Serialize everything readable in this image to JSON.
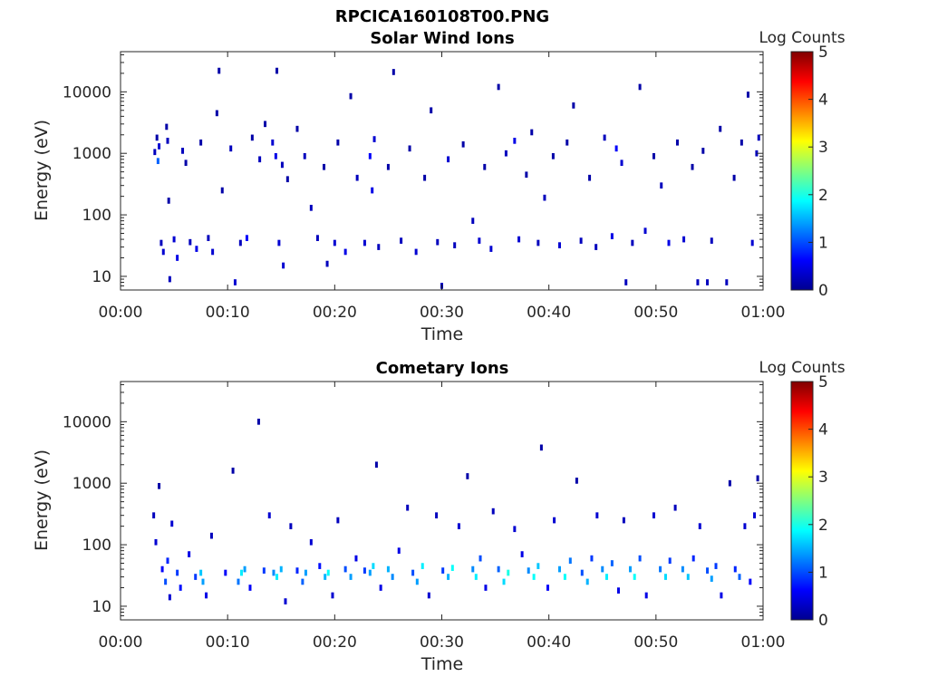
{
  "figure_title": "RPCICA160108T00.PNG",
  "colors": {
    "colormap": "jet",
    "axis": "#262626"
  },
  "chart_data": [
    {
      "type": "heatmap",
      "title": "Solar Wind Ions",
      "xlabel": "Time",
      "ylabel": "Energy (eV)",
      "x_ticks": [
        "00:00",
        "00:10",
        "00:20",
        "00:30",
        "00:40",
        "00:50",
        "01:00"
      ],
      "xlim_minutes": [
        0,
        60
      ],
      "y_scale": "log",
      "y_ticks": [
        {
          "value": 10,
          "label": "10"
        },
        {
          "value": 100,
          "label": "100"
        },
        {
          "value": 1000,
          "label": "1000"
        },
        {
          "value": 10000,
          "label": "10000"
        }
      ],
      "ylim": [
        6,
        45000
      ],
      "colorbar": {
        "label": "Log Counts",
        "range": [
          0,
          5
        ],
        "ticks": [
          "0",
          "1",
          "2",
          "3",
          "4",
          "5"
        ]
      },
      "data_points": [
        [
          3.2,
          1050,
          0.3
        ],
        [
          3.4,
          1800,
          0.2
        ],
        [
          3.5,
          750,
          1.1
        ],
        [
          3.6,
          1300,
          0.4
        ],
        [
          3.8,
          35,
          0.3
        ],
        [
          4.0,
          25,
          0.4
        ],
        [
          4.3,
          2700,
          0.2
        ],
        [
          4.4,
          1600,
          0.3
        ],
        [
          4.5,
          170,
          0.2
        ],
        [
          4.6,
          9,
          0.3
        ],
        [
          5.0,
          40,
          0.4
        ],
        [
          5.3,
          20,
          0.5
        ],
        [
          5.8,
          1100,
          0.3
        ],
        [
          6.1,
          700,
          0.2
        ],
        [
          6.5,
          36,
          0.3
        ],
        [
          7.1,
          28,
          0.5
        ],
        [
          7.5,
          1500,
          0.2
        ],
        [
          8.2,
          42,
          0.3
        ],
        [
          8.6,
          25,
          0.4
        ],
        [
          9.0,
          4500,
          0.2
        ],
        [
          9.2,
          22000,
          0.2
        ],
        [
          9.5,
          250,
          0.2
        ],
        [
          10.3,
          1200,
          0.3
        ],
        [
          10.7,
          8,
          0.4
        ],
        [
          11.2,
          35,
          0.3
        ],
        [
          11.8,
          42,
          0.6
        ],
        [
          12.3,
          1800,
          0.2
        ],
        [
          13.0,
          800,
          0.3
        ],
        [
          13.5,
          3000,
          0.2
        ],
        [
          14.2,
          1500,
          0.4
        ],
        [
          14.5,
          900,
          0.5
        ],
        [
          14.6,
          22000,
          0.2
        ],
        [
          14.8,
          35,
          0.4
        ],
        [
          15.1,
          650,
          0.3
        ],
        [
          15.2,
          15,
          0.4
        ],
        [
          15.6,
          380,
          0.2
        ],
        [
          16.5,
          2500,
          0.2
        ],
        [
          17.2,
          900,
          0.3
        ],
        [
          17.8,
          130,
          0.3
        ],
        [
          18.4,
          42,
          0.3
        ],
        [
          19.0,
          600,
          0.2
        ],
        [
          19.3,
          16,
          0.3
        ],
        [
          20.0,
          35,
          0.4
        ],
        [
          20.3,
          1500,
          0.2
        ],
        [
          21.0,
          25,
          0.5
        ],
        [
          21.5,
          8500,
          0.2
        ],
        [
          22.1,
          400,
          0.3
        ],
        [
          22.8,
          35,
          0.4
        ],
        [
          23.3,
          900,
          0.6
        ],
        [
          23.5,
          250,
          0.5
        ],
        [
          23.7,
          1700,
          0.4
        ],
        [
          24.1,
          30,
          0.3
        ],
        [
          25.0,
          600,
          0.2
        ],
        [
          25.5,
          21000,
          0.2
        ],
        [
          26.2,
          38,
          0.3
        ],
        [
          27.0,
          1200,
          0.2
        ],
        [
          27.6,
          25,
          0.4
        ],
        [
          28.4,
          400,
          0.2
        ],
        [
          29.0,
          5000,
          0.2
        ],
        [
          29.6,
          36,
          0.3
        ],
        [
          30.0,
          7,
          0.3
        ],
        [
          30.6,
          800,
          0.4
        ],
        [
          31.2,
          32,
          0.3
        ],
        [
          32.0,
          1400,
          0.2
        ],
        [
          32.9,
          80,
          0.3
        ],
        [
          33.5,
          38,
          0.4
        ],
        [
          34.0,
          600,
          0.2
        ],
        [
          34.6,
          28,
          0.4
        ],
        [
          35.3,
          12000,
          0.2
        ],
        [
          36.0,
          1000,
          0.3
        ],
        [
          36.8,
          1600,
          0.5
        ],
        [
          37.2,
          40,
          0.4
        ],
        [
          37.9,
          450,
          0.2
        ],
        [
          38.4,
          2200,
          0.2
        ],
        [
          39.0,
          35,
          0.3
        ],
        [
          39.6,
          190,
          0.3
        ],
        [
          40.4,
          900,
          0.2
        ],
        [
          41.0,
          32,
          0.4
        ],
        [
          41.7,
          1500,
          0.2
        ],
        [
          42.3,
          6000,
          0.2
        ],
        [
          43.0,
          38,
          0.3
        ],
        [
          43.8,
          400,
          0.2
        ],
        [
          44.4,
          30,
          0.3
        ],
        [
          45.2,
          1800,
          0.3
        ],
        [
          45.9,
          45,
          0.5
        ],
        [
          46.3,
          1200,
          0.6
        ],
        [
          46.8,
          700,
          0.4
        ],
        [
          47.2,
          8,
          0.3
        ],
        [
          47.8,
          35,
          0.3
        ],
        [
          48.5,
          12000,
          0.2
        ],
        [
          49.0,
          55,
          0.4
        ],
        [
          49.8,
          900,
          0.2
        ],
        [
          50.5,
          300,
          0.3
        ],
        [
          51.2,
          35,
          0.5
        ],
        [
          52.0,
          1500,
          0.2
        ],
        [
          52.6,
          40,
          0.4
        ],
        [
          53.4,
          600,
          0.2
        ],
        [
          53.9,
          8,
          0.3
        ],
        [
          54.4,
          1100,
          0.2
        ],
        [
          54.8,
          8,
          0.3
        ],
        [
          55.2,
          38,
          0.3
        ],
        [
          56.0,
          2500,
          0.2
        ],
        [
          56.6,
          8,
          0.3
        ],
        [
          57.3,
          400,
          0.2
        ],
        [
          58.0,
          1500,
          0.2
        ],
        [
          58.6,
          9000,
          0.2
        ],
        [
          59.0,
          35,
          0.4
        ],
        [
          59.4,
          1000,
          0.3
        ],
        [
          59.6,
          1800,
          0.3
        ]
      ]
    },
    {
      "type": "heatmap",
      "title": "Cometary Ions",
      "xlabel": "Time",
      "ylabel": "Energy (eV)",
      "x_ticks": [
        "00:00",
        "00:10",
        "00:20",
        "00:30",
        "00:40",
        "00:50",
        "01:00"
      ],
      "xlim_minutes": [
        0,
        60
      ],
      "y_scale": "log",
      "y_ticks": [
        {
          "value": 10,
          "label": "10"
        },
        {
          "value": 100,
          "label": "100"
        },
        {
          "value": 1000,
          "label": "1000"
        },
        {
          "value": 10000,
          "label": "10000"
        }
      ],
      "ylim": [
        6,
        45000
      ],
      "colorbar": {
        "label": "Log Counts",
        "range": [
          0,
          5
        ],
        "ticks": [
          "0",
          "1",
          "2",
          "3",
          "4",
          "5"
        ]
      },
      "data_points": [
        [
          3.1,
          300,
          0.3
        ],
        [
          3.3,
          110,
          0.4
        ],
        [
          3.6,
          900,
          0.2
        ],
        [
          3.9,
          40,
          0.6
        ],
        [
          4.2,
          25,
          1.0
        ],
        [
          4.4,
          55,
          0.8
        ],
        [
          4.6,
          14,
          0.4
        ],
        [
          4.8,
          220,
          0.4
        ],
        [
          5.3,
          35,
          0.9
        ],
        [
          5.6,
          20,
          0.7
        ],
        [
          6.4,
          70,
          0.5
        ],
        [
          7.0,
          30,
          0.9
        ],
        [
          7.5,
          35,
          1.6
        ],
        [
          7.7,
          25,
          1.4
        ],
        [
          8.0,
          15,
          0.5
        ],
        [
          8.5,
          140,
          0.3
        ],
        [
          9.8,
          35,
          0.6
        ],
        [
          10.5,
          1600,
          0.2
        ],
        [
          11.0,
          25,
          1.2
        ],
        [
          11.3,
          35,
          1.8
        ],
        [
          11.6,
          40,
          1.4
        ],
        [
          12.1,
          20,
          0.6
        ],
        [
          12.9,
          10000,
          0.2
        ],
        [
          13.4,
          38,
          0.9
        ],
        [
          13.9,
          300,
          0.4
        ],
        [
          14.3,
          35,
          1.3
        ],
        [
          14.6,
          30,
          1.8
        ],
        [
          15.0,
          40,
          1.5
        ],
        [
          15.4,
          12,
          0.4
        ],
        [
          15.9,
          200,
          0.3
        ],
        [
          16.5,
          38,
          0.8
        ],
        [
          17.0,
          25,
          1.1
        ],
        [
          17.3,
          35,
          1.4
        ],
        [
          17.8,
          110,
          0.4
        ],
        [
          18.6,
          45,
          0.7
        ],
        [
          19.1,
          30,
          1.5
        ],
        [
          19.4,
          35,
          1.9
        ],
        [
          19.8,
          15,
          0.4
        ],
        [
          20.3,
          250,
          0.3
        ],
        [
          21.0,
          40,
          1.0
        ],
        [
          21.5,
          30,
          1.4
        ],
        [
          22.0,
          60,
          0.5
        ],
        [
          22.8,
          38,
          0.9
        ],
        [
          23.3,
          35,
          1.4
        ],
        [
          23.6,
          45,
          1.7
        ],
        [
          23.9,
          2000,
          0.2
        ],
        [
          24.3,
          20,
          0.5
        ],
        [
          25.0,
          40,
          1.5
        ],
        [
          25.4,
          30,
          1.3
        ],
        [
          26.0,
          80,
          0.5
        ],
        [
          26.8,
          400,
          0.3
        ],
        [
          27.3,
          35,
          1.0
        ],
        [
          27.7,
          25,
          1.4
        ],
        [
          28.2,
          45,
          1.8
        ],
        [
          28.8,
          15,
          0.4
        ],
        [
          29.5,
          300,
          0.3
        ],
        [
          30.1,
          38,
          0.9
        ],
        [
          30.6,
          30,
          1.5
        ],
        [
          31.0,
          42,
          1.9
        ],
        [
          31.6,
          200,
          0.4
        ],
        [
          32.4,
          1300,
          0.2
        ],
        [
          32.9,
          40,
          1.3
        ],
        [
          33.2,
          30,
          1.8
        ],
        [
          33.6,
          60,
          1.0
        ],
        [
          34.1,
          20,
          0.5
        ],
        [
          34.8,
          350,
          0.3
        ],
        [
          35.3,
          40,
          1.1
        ],
        [
          35.8,
          25,
          1.7
        ],
        [
          36.2,
          35,
          2.0
        ],
        [
          36.8,
          180,
          0.4
        ],
        [
          37.5,
          70,
          0.5
        ],
        [
          38.1,
          38,
          1.3
        ],
        [
          38.6,
          30,
          1.9
        ],
        [
          39.0,
          45,
          1.6
        ],
        [
          39.3,
          3800,
          0.2
        ],
        [
          39.9,
          20,
          0.6
        ],
        [
          40.5,
          250,
          0.4
        ],
        [
          41.0,
          40,
          1.4
        ],
        [
          41.5,
          30,
          1.9
        ],
        [
          42.0,
          55,
          1.2
        ],
        [
          42.6,
          1100,
          0.2
        ],
        [
          43.1,
          35,
          1.0
        ],
        [
          43.6,
          25,
          1.5
        ],
        [
          44.0,
          60,
          0.9
        ],
        [
          44.5,
          300,
          0.4
        ],
        [
          45.0,
          40,
          1.3
        ],
        [
          45.4,
          30,
          1.8
        ],
        [
          45.9,
          50,
          1.1
        ],
        [
          46.5,
          18,
          0.5
        ],
        [
          47.0,
          250,
          0.3
        ],
        [
          47.6,
          40,
          1.4
        ],
        [
          48.0,
          30,
          1.9
        ],
        [
          48.5,
          60,
          1.0
        ],
        [
          49.1,
          15,
          0.5
        ],
        [
          49.8,
          300,
          0.4
        ],
        [
          50.4,
          40,
          1.2
        ],
        [
          50.9,
          30,
          1.7
        ],
        [
          51.3,
          55,
          0.9
        ],
        [
          51.8,
          400,
          0.3
        ],
        [
          52.5,
          40,
          1.3
        ],
        [
          53.0,
          30,
          1.6
        ],
        [
          53.5,
          60,
          0.8
        ],
        [
          54.1,
          200,
          0.4
        ],
        [
          54.8,
          38,
          1.0
        ],
        [
          55.2,
          28,
          1.4
        ],
        [
          55.6,
          45,
          0.9
        ],
        [
          56.1,
          15,
          0.5
        ],
        [
          56.9,
          1000,
          0.2
        ],
        [
          57.4,
          40,
          0.8
        ],
        [
          57.8,
          30,
          1.1
        ],
        [
          58.3,
          200,
          0.4
        ],
        [
          58.8,
          25,
          0.6
        ],
        [
          59.2,
          300,
          0.4
        ],
        [
          59.5,
          1200,
          0.2
        ]
      ]
    }
  ]
}
